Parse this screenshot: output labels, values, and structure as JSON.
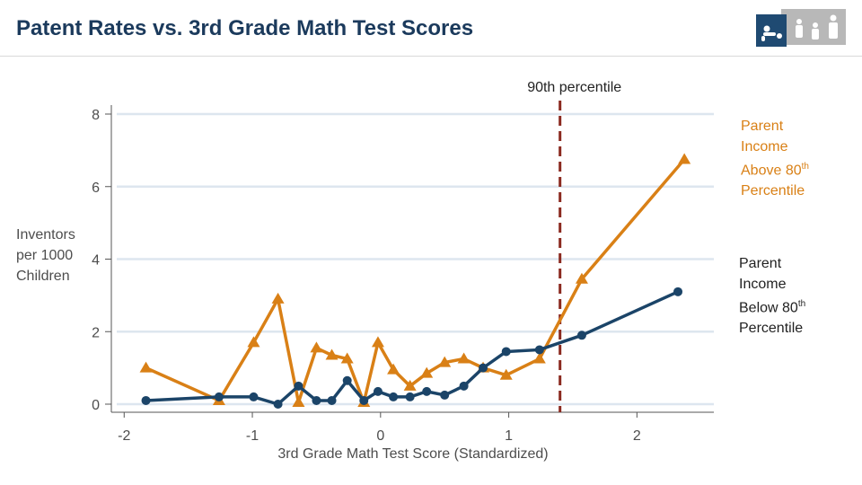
{
  "header": {
    "title": "Patent Rates vs. 3rd Grade Math Test Scores",
    "icon": "family-icon"
  },
  "chart_data": {
    "type": "line",
    "title": "",
    "xlabel": "3rd Grade Math Test Score (Standardized)",
    "ylabel": "Inventors per 1000 Children",
    "xlim": [
      -2.1,
      2.6
    ],
    "ylim": [
      0,
      8
    ],
    "xticks": [
      -2,
      -1,
      0,
      1,
      2
    ],
    "yticks": [
      0,
      2,
      4,
      6,
      8
    ],
    "grid": "horizontal",
    "reference_line": {
      "x": 1.4,
      "label": "90th percentile",
      "color": "#8b2a20",
      "style": "dashed"
    },
    "legend": {
      "above": {
        "lines": [
          "Parent",
          "Income",
          "Above 80",
          "Percentile"
        ],
        "sup": "th"
      },
      "below": {
        "lines": [
          "Parent",
          "Income",
          "Below 80",
          "Percentile"
        ],
        "sup": "th"
      }
    },
    "series": [
      {
        "name": "Parent Income Above 80th Percentile",
        "color": "#d98016",
        "marker": "triangle",
        "x": [
          -1.83,
          -1.26,
          -0.99,
          -0.8,
          -0.64,
          -0.5,
          -0.38,
          -0.26,
          -0.13,
          -0.02,
          0.1,
          0.23,
          0.36,
          0.5,
          0.65,
          0.8,
          0.98,
          1.24,
          1.57,
          2.37
        ],
        "y": [
          1.0,
          0.1,
          1.7,
          2.9,
          0.05,
          1.55,
          1.35,
          1.25,
          0.05,
          1.7,
          0.95,
          0.5,
          0.85,
          1.15,
          1.25,
          1.0,
          0.8,
          1.25,
          3.45,
          6.75
        ]
      },
      {
        "name": "Parent Income Below 80th Percentile",
        "color": "#1b4468",
        "marker": "circle",
        "x": [
          -1.83,
          -1.26,
          -0.99,
          -0.8,
          -0.64,
          -0.5,
          -0.38,
          -0.26,
          -0.13,
          -0.02,
          0.1,
          0.23,
          0.36,
          0.5,
          0.65,
          0.8,
          0.98,
          1.24,
          1.57,
          2.32
        ],
        "y": [
          0.1,
          0.2,
          0.2,
          0.0,
          0.5,
          0.1,
          0.1,
          0.65,
          0.1,
          0.35,
          0.2,
          0.2,
          0.35,
          0.25,
          0.5,
          1.0,
          1.45,
          1.5,
          1.9,
          3.1
        ]
      }
    ]
  }
}
